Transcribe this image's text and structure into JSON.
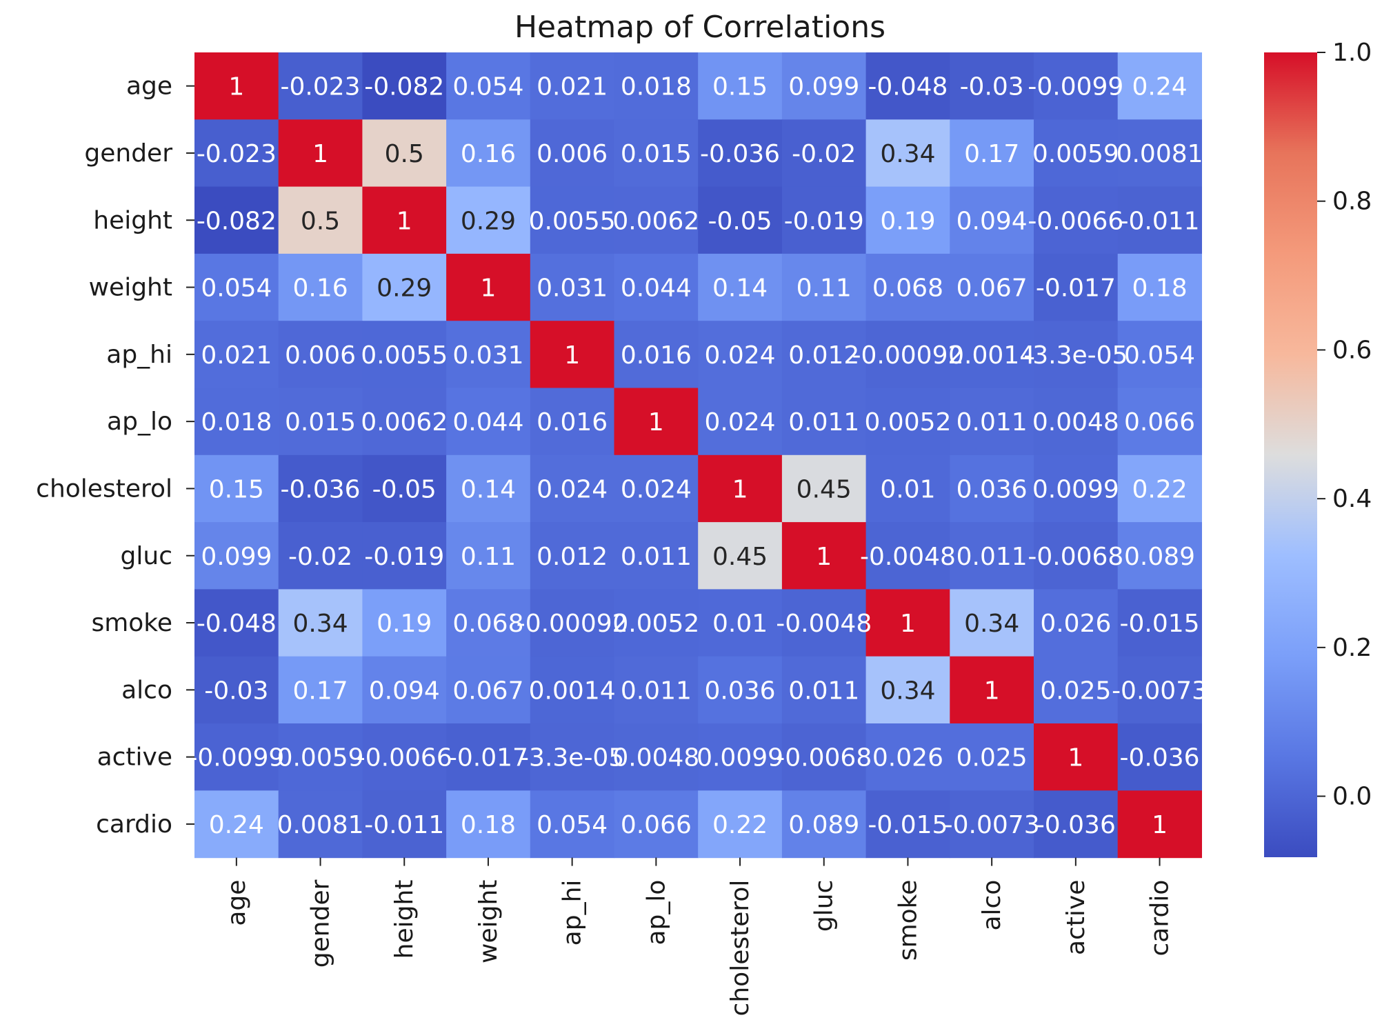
{
  "chart_data": {
    "type": "heatmap",
    "title": "Heatmap of Correlations",
    "variables": [
      "age",
      "gender",
      "height",
      "weight",
      "ap_hi",
      "ap_lo",
      "cholesterol",
      "gluc",
      "smoke",
      "alco",
      "active",
      "cardio"
    ],
    "matrix": [
      [
        1,
        -0.023,
        -0.082,
        0.054,
        0.021,
        0.018,
        0.15,
        0.099,
        -0.048,
        -0.03,
        -0.0099,
        0.24
      ],
      [
        -0.023,
        1,
        0.5,
        0.16,
        0.006,
        0.015,
        -0.036,
        -0.02,
        0.34,
        0.17,
        0.0059,
        0.0081
      ],
      [
        -0.082,
        0.5,
        1,
        0.29,
        0.0055,
        0.0062,
        -0.05,
        -0.019,
        0.19,
        0.094,
        -0.0066,
        -0.011
      ],
      [
        0.054,
        0.16,
        0.29,
        1,
        0.031,
        0.044,
        0.14,
        0.11,
        0.068,
        0.067,
        -0.017,
        0.18
      ],
      [
        0.021,
        0.006,
        0.0055,
        0.031,
        1,
        0.016,
        0.024,
        0.012,
        -0.00092,
        0.0014,
        -3.3e-05,
        0.054
      ],
      [
        0.018,
        0.015,
        0.0062,
        0.044,
        0.016,
        1,
        0.024,
        0.011,
        0.0052,
        0.011,
        0.0048,
        0.066
      ],
      [
        0.15,
        -0.036,
        -0.05,
        0.14,
        0.024,
        0.024,
        1,
        0.45,
        0.01,
        0.036,
        0.0099,
        0.22
      ],
      [
        0.099,
        -0.02,
        -0.019,
        0.11,
        0.012,
        0.011,
        0.45,
        1,
        -0.0048,
        0.011,
        -0.0068,
        0.089
      ],
      [
        -0.048,
        0.34,
        0.19,
        0.068,
        -0.00092,
        0.0052,
        0.01,
        -0.0048,
        1,
        0.34,
        0.026,
        -0.015
      ],
      [
        -0.03,
        0.17,
        0.094,
        0.067,
        0.0014,
        0.011,
        0.036,
        0.011,
        0.34,
        1,
        0.025,
        -0.0073
      ],
      [
        -0.0099,
        0.0059,
        -0.0066,
        -0.017,
        -3.3e-05,
        0.0048,
        0.0099,
        -0.0068,
        0.026,
        0.025,
        1,
        -0.036
      ],
      [
        0.24,
        0.0081,
        -0.011,
        0.18,
        0.054,
        0.066,
        0.22,
        0.089,
        -0.015,
        -0.0073,
        -0.036,
        1
      ]
    ],
    "cell_labels": [
      [
        "1",
        "-0.023",
        "-0.082",
        "0.054",
        "0.021",
        "0.018",
        "0.15",
        "0.099",
        "-0.048",
        "-0.03",
        "-0.0099",
        "0.24"
      ],
      [
        "-0.023",
        "1",
        "0.5",
        "0.16",
        "0.006",
        "0.015",
        "-0.036",
        "-0.02",
        "0.34",
        "0.17",
        "0.0059",
        "0.0081"
      ],
      [
        "-0.082",
        "0.5",
        "1",
        "0.29",
        "0.0055",
        "0.0062",
        "-0.05",
        "-0.019",
        "0.19",
        "0.094",
        "-0.0066",
        "-0.011"
      ],
      [
        "0.054",
        "0.16",
        "0.29",
        "1",
        "0.031",
        "0.044",
        "0.14",
        "0.11",
        "0.068",
        "0.067",
        "-0.017",
        "0.18"
      ],
      [
        "0.021",
        "0.006",
        "0.0055",
        "0.031",
        "1",
        "0.016",
        "0.024",
        "0.012",
        "-0.00092",
        "0.0014",
        "-3.3e-05",
        "0.054"
      ],
      [
        "0.018",
        "0.015",
        "0.0062",
        "0.044",
        "0.016",
        "1",
        "0.024",
        "0.011",
        "0.0052",
        "0.011",
        "0.0048",
        "0.066"
      ],
      [
        "0.15",
        "-0.036",
        "-0.05",
        "0.14",
        "0.024",
        "0.024",
        "1",
        "0.45",
        "0.01",
        "0.036",
        "0.0099",
        "0.22"
      ],
      [
        "0.099",
        "-0.02",
        "-0.019",
        "0.11",
        "0.012",
        "0.011",
        "0.45",
        "1",
        "-0.0048",
        "0.011",
        "-0.0068",
        "0.089"
      ],
      [
        "-0.048",
        "0.34",
        "0.19",
        "0.068",
        "-0.00092",
        "0.0052",
        "0.01",
        "-0.0048",
        "1",
        "0.34",
        "0.026",
        "-0.015"
      ],
      [
        "-0.03",
        "0.17",
        "0.094",
        "0.067",
        "0.0014",
        "0.011",
        "0.036",
        "0.011",
        "0.34",
        "1",
        "0.025",
        "-0.0073"
      ],
      [
        "-0.0099",
        "0.0059",
        "-0.0066",
        "-0.017",
        "-3.3e-05",
        "0.0048",
        "0.0099",
        "-0.0068",
        "0.026",
        "0.025",
        "1",
        "-0.036"
      ],
      [
        "0.24",
        "0.0081",
        "-0.011",
        "0.18",
        "0.054",
        "0.066",
        "0.22",
        "0.089",
        "-0.015",
        "-0.0073",
        "-0.036",
        "1"
      ]
    ],
    "colormap": "coolwarm",
    "value_range": [
      -0.082,
      1.0
    ],
    "colorbar": {
      "ticks": [
        0.0,
        0.2,
        0.4,
        0.6,
        0.8,
        1.0
      ],
      "tick_labels": [
        "0.0",
        "0.2",
        "0.4",
        "0.6",
        "0.8",
        "1.0"
      ]
    },
    "colormap_stops": [
      {
        "v": 0.0,
        "color": "#3b4cc0"
      },
      {
        "v": 0.125,
        "color": "#5977e3"
      },
      {
        "v": 0.25,
        "color": "#7b9ff9"
      },
      {
        "v": 0.375,
        "color": "#9ebeff"
      },
      {
        "v": 0.5,
        "color": "#dddddd"
      },
      {
        "v": 0.625,
        "color": "#f7b89c"
      },
      {
        "v": 0.75,
        "color": "#f49a7b"
      },
      {
        "v": 0.875,
        "color": "#e7745b"
      },
      {
        "v": 1.0,
        "color": "#d60f28"
      }
    ],
    "label_color_dark": "#262626",
    "label_color_light": "#ffffff",
    "xlabel": "",
    "ylabel": ""
  }
}
